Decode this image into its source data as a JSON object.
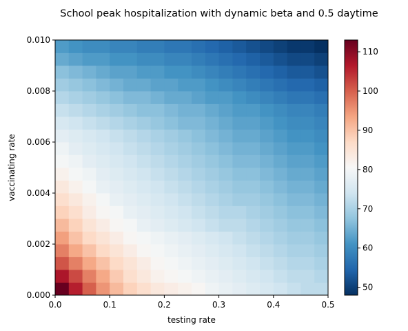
{
  "chart_data": {
    "type": "heatmap",
    "title": "School peak hospitalization with dynamic beta and 0.5 daytime",
    "xlabel": "testing rate",
    "ylabel": "vaccinating rate",
    "xlim": [
      0,
      0.5
    ],
    "ylim": [
      0,
      0.01
    ],
    "x_ticks": [
      0.0,
      0.1,
      0.2,
      0.3,
      0.4,
      0.5
    ],
    "x_tick_labels": [
      "0.0",
      "0.1",
      "0.2",
      "0.3",
      "0.4",
      "0.5"
    ],
    "y_ticks": [
      0.0,
      0.002,
      0.004,
      0.006,
      0.008,
      0.01
    ],
    "y_tick_labels": [
      "0.000",
      "0.002",
      "0.004",
      "0.006",
      "0.008",
      "0.010"
    ],
    "grid": false,
    "colormap": "RdBu_r",
    "colorbar": {
      "min": 48,
      "max": 113,
      "ticks": [
        50,
        60,
        70,
        80,
        90,
        100,
        110
      ],
      "tick_labels": [
        "50",
        "60",
        "70",
        "80",
        "90",
        "100",
        "110"
      ],
      "colors": [
        "#053061",
        "#2166ac",
        "#4393c3",
        "#92c5de",
        "#d1e5f0",
        "#f7f7f7",
        "#fddbc7",
        "#f4a582",
        "#d6604d",
        "#b2182b",
        "#67001f"
      ]
    },
    "x_centers": [
      0.0125,
      0.0375,
      0.0625,
      0.0875,
      0.1125,
      0.1375,
      0.1625,
      0.1875,
      0.2125,
      0.2375,
      0.2625,
      0.2875,
      0.3125,
      0.3375,
      0.3625,
      0.3875,
      0.4125,
      0.4375,
      0.4625,
      0.4875
    ],
    "y_centers": [
      0.00025,
      0.00075,
      0.00125,
      0.00175,
      0.00225,
      0.00275,
      0.00325,
      0.00375,
      0.00425,
      0.00475,
      0.00525,
      0.00575,
      0.00625,
      0.00675,
      0.00725,
      0.00775,
      0.00825,
      0.00875,
      0.00925,
      0.00975
    ],
    "values": [
      [
        113,
        106,
        100,
        95,
        91,
        88,
        86,
        84,
        83,
        82,
        81,
        79,
        78,
        77,
        76,
        75,
        74,
        73,
        72,
        72
      ],
      [
        107,
        102,
        97,
        93,
        89,
        86,
        84,
        82,
        81,
        80,
        79,
        78,
        77,
        76,
        75,
        74,
        73,
        72,
        72,
        71
      ],
      [
        101,
        97,
        93,
        90,
        87,
        85,
        83,
        81,
        80,
        79,
        78,
        77,
        76,
        75,
        74,
        73,
        72,
        71,
        71,
        70
      ],
      [
        97,
        93,
        90,
        87,
        85,
        83,
        81,
        80,
        79,
        78,
        77,
        76,
        75,
        74,
        73,
        72,
        71,
        70,
        70,
        69
      ],
      [
        94,
        90,
        87,
        85,
        83,
        81,
        80,
        79,
        78,
        77,
        76,
        75,
        74,
        73,
        72,
        71,
        70,
        69,
        69,
        68
      ],
      [
        91,
        88,
        85,
        83,
        81,
        80,
        78,
        77,
        76,
        75,
        74,
        73,
        72,
        72,
        71,
        70,
        69,
        68,
        68,
        67
      ],
      [
        88,
        86,
        83,
        81,
        80,
        78,
        77,
        76,
        75,
        74,
        73,
        72,
        71,
        71,
        70,
        69,
        68,
        67,
        67,
        66
      ],
      [
        86,
        84,
        82,
        80,
        78,
        77,
        76,
        75,
        74,
        73,
        72,
        71,
        70,
        69,
        69,
        68,
        67,
        66,
        66,
        65
      ],
      [
        84,
        82,
        80,
        78,
        77,
        76,
        75,
        74,
        73,
        72,
        71,
        70,
        69,
        68,
        68,
        67,
        66,
        65,
        65,
        64
      ],
      [
        82,
        80,
        79,
        77,
        76,
        75,
        74,
        73,
        72,
        71,
        70,
        69,
        68,
        67,
        67,
        66,
        65,
        64,
        64,
        63
      ],
      [
        80,
        79,
        77,
        76,
        75,
        74,
        73,
        72,
        71,
        70,
        69,
        68,
        67,
        66,
        66,
        65,
        64,
        63,
        63,
        62
      ],
      [
        79,
        77,
        76,
        75,
        74,
        73,
        72,
        71,
        70,
        69,
        68,
        67,
        66,
        65,
        65,
        64,
        63,
        62,
        62,
        61
      ],
      [
        77,
        76,
        75,
        74,
        73,
        72,
        71,
        70,
        69,
        68,
        67,
        66,
        65,
        64,
        64,
        63,
        62,
        61,
        61,
        60
      ],
      [
        75,
        74,
        73,
        72,
        71,
        70,
        69,
        68,
        67,
        66,
        66,
        65,
        64,
        63,
        63,
        62,
        61,
        60,
        60,
        59
      ],
      [
        73,
        72,
        71,
        70,
        69,
        68,
        67,
        67,
        66,
        65,
        65,
        64,
        63,
        62,
        62,
        61,
        60,
        59,
        59,
        58
      ],
      [
        71,
        70,
        69,
        68,
        67,
        66,
        66,
        65,
        64,
        64,
        63,
        62,
        62,
        61,
        60,
        59,
        58,
        57,
        57,
        56
      ],
      [
        69,
        68,
        67,
        66,
        65,
        64,
        64,
        63,
        63,
        62,
        62,
        61,
        60,
        59,
        58,
        57,
        56,
        55,
        55,
        54
      ],
      [
        67,
        66,
        65,
        64,
        63,
        63,
        62,
        62,
        61,
        61,
        60,
        59,
        58,
        57,
        56,
        55,
        54,
        53,
        53,
        52
      ],
      [
        64,
        63,
        62,
        62,
        61,
        61,
        60,
        60,
        59,
        59,
        58,
        57,
        56,
        55,
        54,
        53,
        52,
        51,
        51,
        50
      ],
      [
        62,
        61,
        60,
        60,
        59,
        59,
        58,
        58,
        57,
        57,
        56,
        55,
        54,
        53,
        52,
        51,
        50,
        49,
        49,
        48
      ]
    ]
  }
}
